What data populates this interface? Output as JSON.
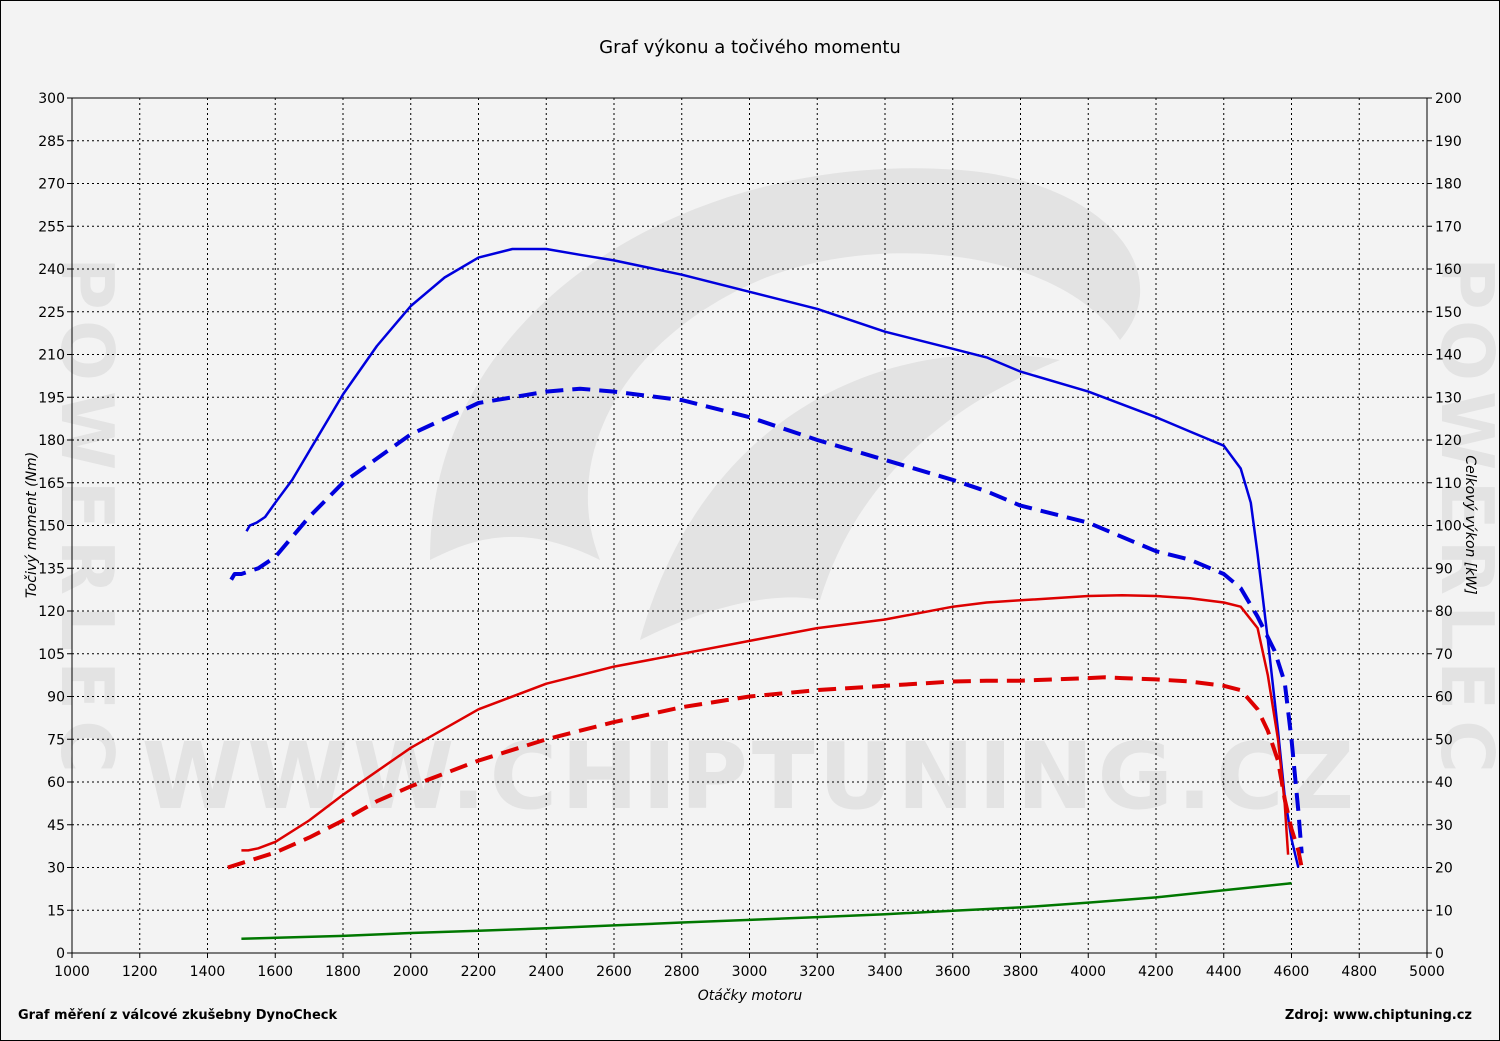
{
  "chart_data": {
    "type": "line",
    "title": "Graf výkonu a točivého momentu",
    "xlabel": "Otáčky motoru",
    "ylabel_left": "Točivý moment (Nm)",
    "ylabel_right": "Celkový výkon [kW]",
    "footer_left": "Graf měření z válcové zkušebny DynoCheck",
    "footer_right": "Zdroj: www.chiptuning.cz",
    "watermark": "WWW.CHIPTUNING.CZ",
    "side_watermark": "POWERLEC",
    "xlim": [
      1000,
      5000
    ],
    "ylim_left": [
      0,
      300
    ],
    "ylim_right": [
      0,
      200
    ],
    "grid": true,
    "x_ticks": [
      1000,
      1200,
      1400,
      1600,
      1800,
      2000,
      2200,
      2400,
      2600,
      2800,
      3000,
      3200,
      3400,
      3600,
      3800,
      4000,
      4200,
      4400,
      4600,
      4800,
      5000
    ],
    "y_left_ticks": [
      0,
      15,
      30,
      45,
      60,
      75,
      90,
      105,
      120,
      135,
      150,
      165,
      180,
      195,
      210,
      225,
      240,
      255,
      270,
      285,
      300
    ],
    "y_right_ticks": [
      0,
      10,
      20,
      30,
      40,
      50,
      60,
      70,
      80,
      90,
      100,
      110,
      120,
      130,
      140,
      150,
      160,
      170,
      180,
      190,
      200
    ],
    "colors": {
      "torque": "#0000dd",
      "power": "#dd0000",
      "loss": "#007700"
    },
    "series": [
      {
        "axis": "left",
        "color": "#0000dd",
        "dash": false,
        "x": [
          1515,
          1525,
          1545,
          1570,
          1600,
          1650,
          1700,
          1800,
          1900,
          2000,
          2100,
          2200,
          2300,
          2400,
          2500,
          2600,
          2800,
          3000,
          3200,
          3400,
          3600,
          3700,
          3800,
          4000,
          4200,
          4300,
          4400,
          4450,
          4480,
          4500,
          4530,
          4560,
          4580,
          4600,
          4620
        ],
        "y": [
          148,
          150,
          151,
          153,
          158,
          166,
          176,
          196,
          213,
          227,
          237,
          244,
          247,
          247,
          245,
          243,
          238,
          232,
          226,
          218,
          212,
          209,
          204,
          197,
          188,
          183,
          178,
          170,
          158,
          140,
          110,
          78,
          55,
          40,
          30
        ]
      },
      {
        "axis": "left",
        "color": "#0000dd",
        "dash": true,
        "x": [
          1470,
          1480,
          1500,
          1550,
          1600,
          1700,
          1800,
          2000,
          2200,
          2400,
          2500,
          2600,
          2800,
          3000,
          3200,
          3400,
          3600,
          3700,
          3800,
          4000,
          4200,
          4300,
          4400,
          4450,
          4500,
          4550,
          4580,
          4600,
          4620,
          4630
        ],
        "y": [
          131,
          133,
          133,
          135,
          139,
          153,
          165,
          182,
          193,
          197,
          198,
          197,
          194,
          188,
          180,
          173,
          166,
          162,
          157,
          151,
          141,
          138,
          133,
          128,
          118,
          106,
          95,
          75,
          50,
          35
        ]
      },
      {
        "axis": "right",
        "color": "#dd0000",
        "dash": false,
        "x": [
          1500,
          1520,
          1550,
          1600,
          1700,
          1800,
          2000,
          2200,
          2400,
          2600,
          2800,
          3000,
          3200,
          3400,
          3600,
          3700,
          3800,
          4000,
          4100,
          4200,
          4300,
          4400,
          4450,
          4500,
          4530,
          4560,
          4580,
          4590
        ],
        "y": [
          24,
          24,
          24.5,
          26,
          31,
          37,
          48,
          57,
          63,
          67,
          70,
          73,
          76,
          78,
          81,
          82,
          82.5,
          83.5,
          83.7,
          83.5,
          83,
          82,
          81,
          76,
          65,
          50,
          35,
          23
        ]
      },
      {
        "axis": "right",
        "color": "#dd0000",
        "dash": true,
        "x": [
          1460,
          1500,
          1600,
          1700,
          1800,
          1900,
          2000,
          2200,
          2400,
          2600,
          2800,
          3000,
          3200,
          3400,
          3600,
          3700,
          3800,
          3900,
          4000,
          4050,
          4100,
          4200,
          4300,
          4400,
          4450,
          4500,
          4530,
          4560,
          4580,
          4600,
          4620,
          4630
        ],
        "y": [
          20,
          21,
          23.5,
          27,
          31,
          35.5,
          39,
          45,
          50,
          54,
          57.5,
          60,
          61.5,
          62.5,
          63.5,
          63.7,
          63.7,
          64,
          64.3,
          64.5,
          64.3,
          64,
          63.5,
          62.5,
          61.5,
          57,
          52,
          45,
          36,
          29,
          24,
          20
        ]
      },
      {
        "axis": "left",
        "color": "#007700",
        "dash": false,
        "x": [
          1500,
          1800,
          2000,
          2200,
          2400,
          2600,
          2800,
          3000,
          3200,
          3400,
          3600,
          3800,
          4000,
          4200,
          4400,
          4600
        ],
        "y": [
          5,
          6,
          7,
          7.8,
          8.7,
          9.7,
          10.7,
          11.6,
          12.6,
          13.6,
          14.8,
          16,
          17.7,
          19.5,
          22,
          24.5
        ]
      }
    ]
  }
}
